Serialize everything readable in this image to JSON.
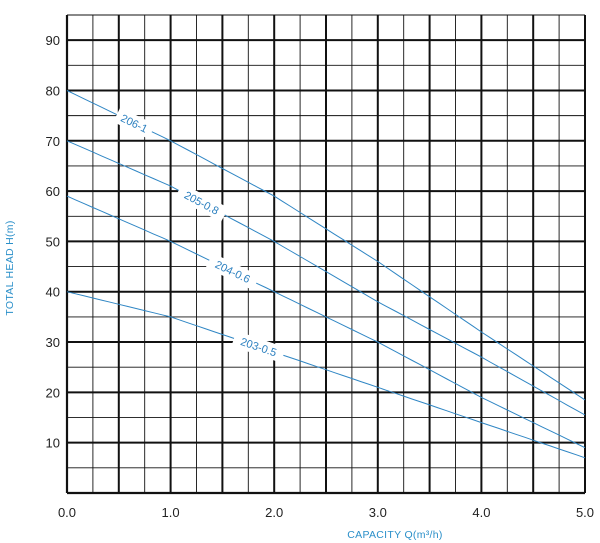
{
  "chart_data": {
    "type": "line",
    "xlabel": "CAPACITY Q(m³/h)",
    "ylabel": "TOTAL HEAD H(m)",
    "xlim": [
      0,
      5
    ],
    "ylim": [
      0,
      95
    ],
    "x_ticks": [
      "0.0",
      "1.0",
      "2.0",
      "3.0",
      "4.0",
      "5.0"
    ],
    "y_ticks": [
      "10",
      "20",
      "30",
      "40",
      "50",
      "60",
      "70",
      "80",
      "90"
    ],
    "grid": true,
    "series": [
      {
        "name": "206-1",
        "x": [
          0,
          1,
          2,
          3,
          4,
          5
        ],
        "y": [
          80,
          70,
          59,
          46,
          32,
          18.5
        ],
        "label_at": 0.65
      },
      {
        "name": "205-0.8",
        "x": [
          0,
          1,
          2,
          3,
          4,
          5
        ],
        "y": [
          70,
          61,
          50,
          38,
          27,
          15.5
        ],
        "label_at": 1.3
      },
      {
        "name": "204-0.6",
        "x": [
          0,
          1,
          2,
          3,
          4,
          5
        ],
        "y": [
          59,
          50,
          40,
          30,
          19,
          9
        ],
        "label_at": 1.6
      },
      {
        "name": "203-0.5",
        "x": [
          0,
          1,
          2,
          3,
          4,
          5
        ],
        "y": [
          40,
          35,
          28,
          21,
          14,
          7
        ],
        "label_at": 1.85
      }
    ]
  }
}
